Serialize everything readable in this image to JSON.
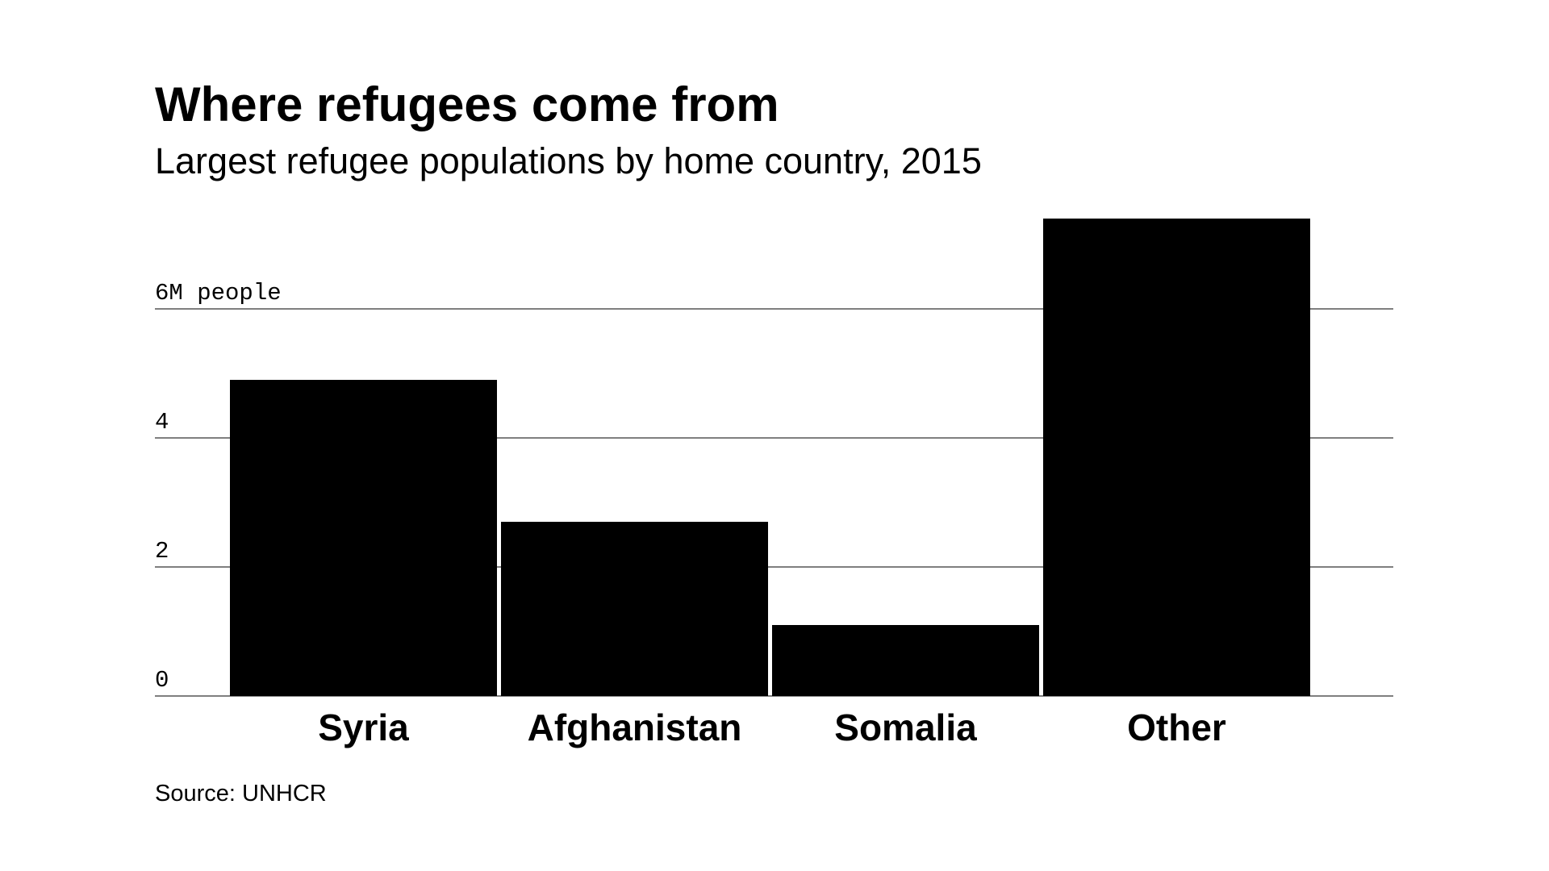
{
  "chart_data": {
    "type": "bar",
    "title": "Where refugees come from",
    "subtitle": "Largest refugee populations by home country, 2015",
    "categories": [
      "Syria",
      "Afghanistan",
      "Somalia",
      "Other"
    ],
    "values": [
      4.9,
      2.7,
      1.1,
      7.4
    ],
    "color": "#000000",
    "ylim": [
      0,
      7.5
    ],
    "yticks": [
      0,
      2,
      4,
      {
        "value": 6,
        "label": "6M people"
      }
    ],
    "grid": true,
    "source": "Source: UNHCR"
  }
}
